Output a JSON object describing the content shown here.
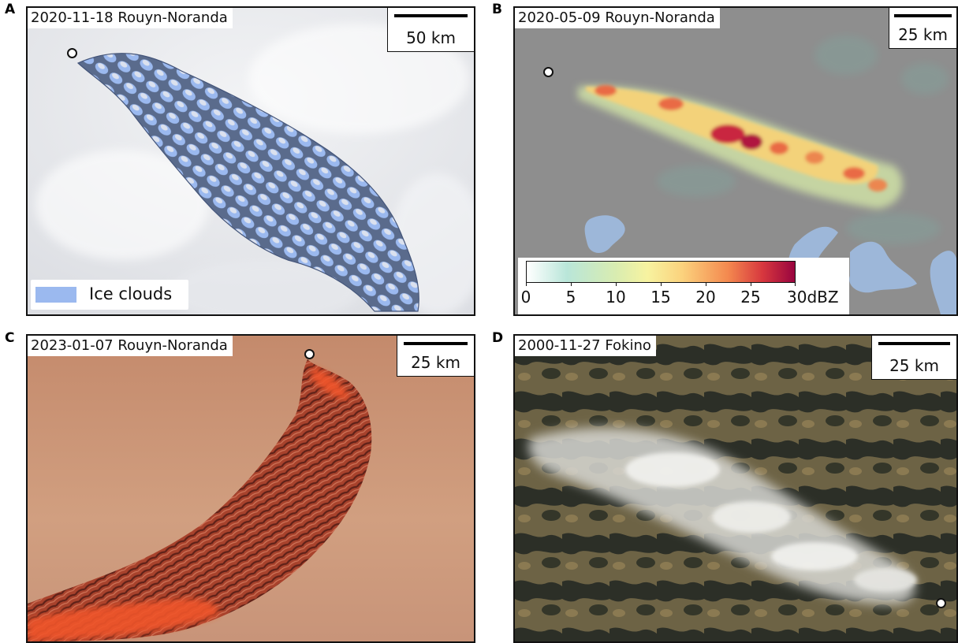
{
  "panels": [
    {
      "letter": "A",
      "date_label": "2020-11-18 Rouyn-Noranda",
      "scale_label": "50 km",
      "legend_label": "Ice clouds"
    },
    {
      "letter": "B",
      "date_label": "2020-05-09 Rouyn-Noranda",
      "scale_label": "25 km",
      "colorbar": {
        "ticks": [
          "0",
          "5",
          "10",
          "15",
          "20",
          "25",
          "30"
        ],
        "unit": "dBZ"
      }
    },
    {
      "letter": "C",
      "date_label": "2023-01-07 Rouyn-Noranda",
      "scale_label": "25 km"
    },
    {
      "letter": "D",
      "date_label": "2000-11-27 Fokino",
      "scale_label": "25 km"
    }
  ],
  "colors": {
    "ice_cloud_overlay": "#9bb9ef",
    "radar_background": "#8e8e8e",
    "false_color_background": "#c99477",
    "false_color_plume": "#c9462b"
  }
}
